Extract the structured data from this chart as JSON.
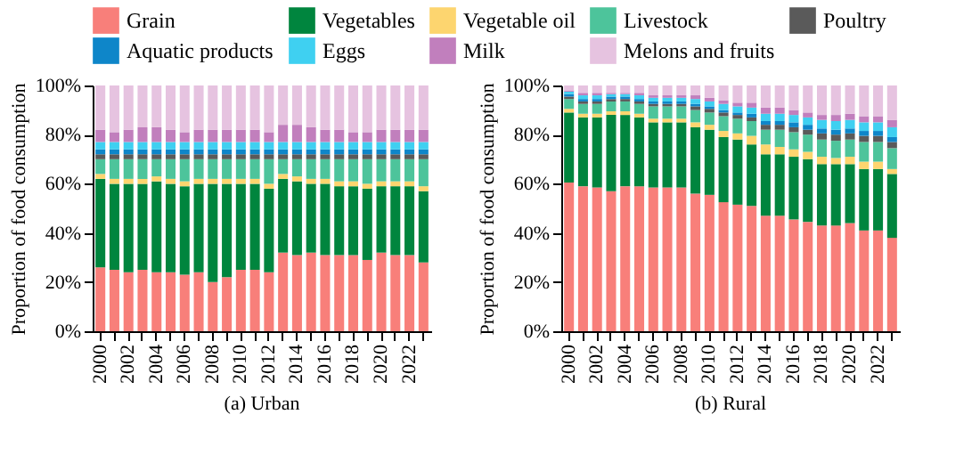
{
  "chart_data": [
    {
      "type": "bar",
      "stacked": true,
      "title": "(a) Urban",
      "ylabel": "Proportion of food consumption",
      "legend": "top",
      "categories": [
        "2000",
        null,
        "2002",
        null,
        "2004",
        null,
        "2006",
        null,
        "2008",
        null,
        "2010",
        null,
        "2012",
        null,
        "2014",
        null,
        "2016",
        null,
        "2018",
        null,
        "2020",
        null,
        "2022",
        null
      ],
      "ylim": [
        0,
        100
      ],
      "yticks": [
        {
          "value": 0,
          "label": "0%"
        },
        {
          "value": 20,
          "label": "20%"
        },
        {
          "value": 40,
          "label": "40%"
        },
        {
          "value": 60,
          "label": "60%"
        },
        {
          "value": 80,
          "label": "80%"
        },
        {
          "value": 100,
          "label": "100%"
        }
      ],
      "series": [
        {
          "name": "Grain",
          "color": "#f87f7a",
          "values": [
            26,
            25,
            24,
            25,
            24,
            24,
            23,
            24,
            20,
            22,
            25,
            25,
            24,
            32,
            31,
            32,
            31,
            31,
            31,
            29,
            32,
            31,
            31,
            28
          ]
        },
        {
          "name": "Vegetables",
          "color": "#00853e",
          "values": [
            36,
            35,
            36,
            35,
            37,
            36,
            36,
            36,
            40,
            38,
            35,
            35,
            34,
            30,
            30,
            28,
            29,
            28,
            28,
            29,
            27,
            28,
            28,
            29
          ]
        },
        {
          "name": "Vegetable oil",
          "color": "#fdd56f",
          "values": [
            2,
            2,
            2,
            2,
            2,
            2,
            2,
            2,
            2,
            2,
            2,
            2,
            2,
            2,
            2,
            2,
            2,
            2,
            2,
            2,
            2,
            2,
            2,
            2
          ]
        },
        {
          "name": "Livestock",
          "color": "#4dc49b",
          "values": [
            6,
            8,
            8,
            8,
            7,
            8,
            9,
            8,
            8,
            8,
            8,
            8,
            10,
            6,
            7,
            8,
            8,
            9,
            9,
            10,
            9,
            9,
            9,
            11
          ]
        },
        {
          "name": "Poultry",
          "color": "#5a5a5a",
          "values": [
            2,
            2,
            2,
            2,
            2,
            2,
            2,
            2,
            2,
            2,
            2,
            2,
            2,
            2,
            2,
            2,
            2,
            2,
            2,
            2,
            2,
            2,
            2,
            2
          ]
        },
        {
          "name": "Aquatic products",
          "color": "#0e86c9",
          "values": [
            2,
            2,
            2,
            2,
            2,
            2,
            2,
            2,
            2,
            2,
            2,
            2,
            2,
            2,
            2,
            2,
            2,
            2,
            2,
            2,
            2,
            2,
            2,
            2
          ]
        },
        {
          "name": "Eggs",
          "color": "#3fd0f1",
          "values": [
            3,
            3,
            3,
            3,
            3,
            3,
            3,
            3,
            3,
            3,
            3,
            3,
            3,
            3,
            3,
            3,
            3,
            3,
            3,
            3,
            3,
            3,
            3,
            3
          ]
        },
        {
          "name": "Milk",
          "color": "#c17fbd",
          "values": [
            5,
            4,
            5,
            6,
            6,
            5,
            4,
            5,
            5,
            5,
            5,
            5,
            4,
            7,
            7,
            6,
            5,
            5,
            4,
            4,
            5,
            5,
            5,
            5
          ]
        },
        {
          "name": "Melons and fruits",
          "color": "#e6c3e0",
          "values": [
            18,
            19,
            18,
            17,
            17,
            18,
            19,
            18,
            18,
            18,
            18,
            18,
            19,
            16,
            16,
            17,
            18,
            18,
            19,
            19,
            18,
            18,
            18,
            18
          ]
        }
      ]
    },
    {
      "type": "bar",
      "stacked": true,
      "title": "(b) Rural",
      "ylabel": "Proportion of food consumption",
      "categories": [
        "2000",
        null,
        "2002",
        null,
        "2004",
        null,
        "2006",
        null,
        "2008",
        null,
        "2010",
        null,
        "2012",
        null,
        "2014",
        null,
        "2016",
        null,
        "2018",
        null,
        "2020",
        null,
        "2022",
        null
      ],
      "ylim": [
        0,
        100
      ],
      "yticks": [
        {
          "value": 0,
          "label": "0%"
        },
        {
          "value": 20,
          "label": "20%"
        },
        {
          "value": 40,
          "label": "40%"
        },
        {
          "value": 60,
          "label": "60%"
        },
        {
          "value": 80,
          "label": "80%"
        },
        {
          "value": 100,
          "label": "100%"
        }
      ],
      "series": [
        {
          "name": "Grain",
          "color": "#f87f7a",
          "values": [
            60.5,
            59,
            58.5,
            57,
            59,
            59,
            58.5,
            58.5,
            58.5,
            56,
            55.5,
            52.5,
            51.5,
            51,
            47,
            47,
            45.5,
            44.5,
            43,
            43,
            44,
            41,
            41,
            38
          ]
        },
        {
          "name": "Vegetables",
          "color": "#00853e",
          "values": [
            28.5,
            28,
            28.5,
            31,
            29,
            28,
            26.5,
            26.5,
            26.5,
            27,
            26.5,
            26.5,
            26.5,
            25,
            25,
            25,
            25.5,
            25.5,
            25,
            25,
            24,
            25,
            25,
            26
          ]
        },
        {
          "name": "Vegetable oil",
          "color": "#fdd56f",
          "values": [
            1.5,
            1.5,
            1.5,
            1.5,
            1.5,
            1.5,
            1.5,
            1.5,
            1.5,
            2,
            2,
            2.5,
            2.5,
            3.5,
            4,
            3,
            3,
            3,
            3,
            2.5,
            3,
            3,
            3,
            2
          ]
        },
        {
          "name": "Livestock",
          "color": "#4dc49b",
          "values": [
            4,
            4,
            4,
            4,
            4,
            4,
            5,
            5,
            5,
            5,
            5,
            6,
            6,
            6,
            6,
            7,
            7,
            7,
            7,
            7,
            7,
            8,
            8,
            8.5
          ]
        },
        {
          "name": "Poultry",
          "color": "#5a5a5a",
          "values": [
            1,
            1,
            1,
            1,
            1,
            1,
            1,
            1,
            1,
            1.5,
            1.5,
            1.5,
            1.5,
            1.5,
            2,
            2,
            2,
            2,
            2.5,
            2.5,
            2.5,
            2.5,
            2.5,
            2.5
          ]
        },
        {
          "name": "Aquatic products",
          "color": "#0e86c9",
          "values": [
            1,
            1,
            1,
            1,
            1,
            1,
            1,
            1,
            1,
            1,
            1,
            1,
            1,
            1.5,
            1.5,
            1.5,
            2,
            2,
            2,
            2,
            2,
            2,
            2,
            2
          ]
        },
        {
          "name": "Eggs",
          "color": "#3fd0f1",
          "values": [
            1,
            1.5,
            1.5,
            1,
            1,
            1.5,
            1.5,
            1.5,
            1.5,
            2,
            2,
            2.5,
            2.5,
            2.5,
            3,
            3,
            3,
            3,
            3.5,
            3.5,
            3.5,
            3.5,
            3.5,
            4
          ]
        },
        {
          "name": "Milk",
          "color": "#c17fbd",
          "values": [
            0.5,
            1,
            1,
            0.5,
            0.5,
            1,
            1,
            1,
            1,
            1.5,
            1.5,
            1.5,
            1.5,
            2,
            2.5,
            2.5,
            2,
            2,
            2,
            2.5,
            2.5,
            2.5,
            2.5,
            3
          ]
        },
        {
          "name": "Melons and fruits",
          "color": "#e6c3e0",
          "values": [
            2,
            3,
            3,
            3,
            3,
            3,
            4,
            4,
            4,
            4,
            5,
            6,
            7,
            7,
            9,
            9,
            10,
            11,
            12,
            12,
            11.5,
            12.5,
            12.5,
            14
          ]
        }
      ]
    }
  ]
}
